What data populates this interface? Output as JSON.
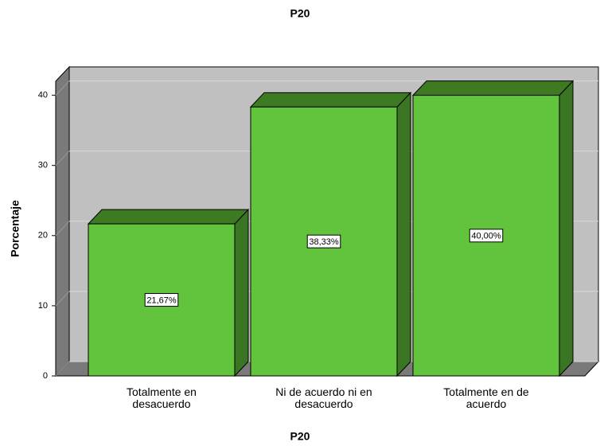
{
  "chart_data": {
    "type": "bar3d",
    "title": "P20",
    "x_label": "P20",
    "y_label": "Porcentaje",
    "categories": [
      "Totalmente en desacuerdo",
      "Ni de acuerdo ni en desacuerdo",
      "Totalmente en de acuerdo"
    ],
    "values": [
      21.67,
      38.33,
      40.0
    ],
    "value_labels": [
      "21,67%",
      "38,33%",
      "40,00%"
    ],
    "color": "#62c43d",
    "ylim": [
      0,
      42
    ],
    "yticks": [
      0,
      10,
      20,
      30,
      40
    ],
    "grid": true
  }
}
